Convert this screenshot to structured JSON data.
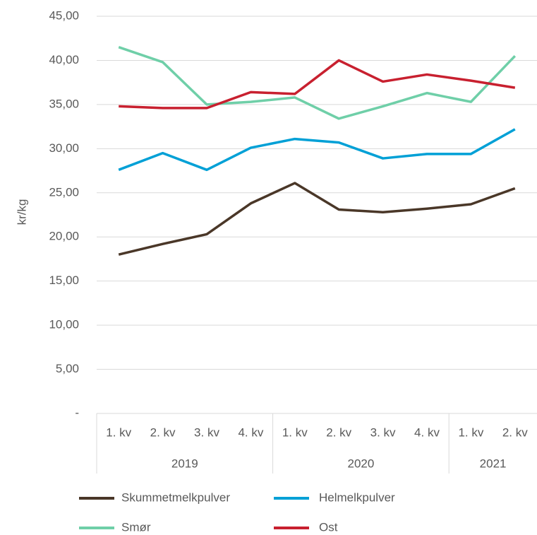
{
  "chart_data": {
    "type": "line",
    "y_label": "kr/kg",
    "category_groups": [
      {
        "name": "2019",
        "categories": [
          "1. kv",
          "2. kv",
          "3. kv",
          "4. kv"
        ]
      },
      {
        "name": "2020",
        "categories": [
          "1. kv",
          "2. kv",
          "3. kv",
          "4. kv"
        ]
      },
      {
        "name": "2021",
        "categories": [
          "1. kv",
          "2. kv"
        ]
      }
    ],
    "series": [
      {
        "name": "Skummetmelkpulver",
        "color": "#4a3728",
        "values": [
          18.0,
          19.2,
          20.3,
          23.8,
          26.1,
          23.1,
          22.8,
          23.2,
          23.7,
          25.5
        ]
      },
      {
        "name": "Helmelkpulver",
        "color": "#00a0d6",
        "values": [
          27.6,
          29.5,
          27.6,
          30.1,
          31.1,
          30.7,
          28.9,
          29.4,
          29.4,
          32.2
        ]
      },
      {
        "name": "Smør",
        "color": "#6fcfa8",
        "values": [
          41.5,
          39.8,
          35.0,
          35.3,
          35.8,
          33.4,
          34.8,
          36.3,
          35.3,
          40.5
        ]
      },
      {
        "name": "Ost",
        "color": "#c8202f",
        "values": [
          34.8,
          34.6,
          34.6,
          36.4,
          36.2,
          40.0,
          37.6,
          38.4,
          37.7,
          36.9
        ]
      }
    ],
    "ylim": [
      0,
      45
    ],
    "yticks": [
      {
        "value": 0,
        "label": "-"
      },
      {
        "value": 5,
        "label": "5,00"
      },
      {
        "value": 10,
        "label": "10,00"
      },
      {
        "value": 15,
        "label": "15,00"
      },
      {
        "value": 20,
        "label": "20,00"
      },
      {
        "value": 25,
        "label": "25,00"
      },
      {
        "value": 30,
        "label": "30,00"
      },
      {
        "value": 35,
        "label": "35,00"
      },
      {
        "value": 40,
        "label": "40,00"
      },
      {
        "value": 45,
        "label": "45,00"
      }
    ],
    "grid": true,
    "legend": "bottom"
  }
}
